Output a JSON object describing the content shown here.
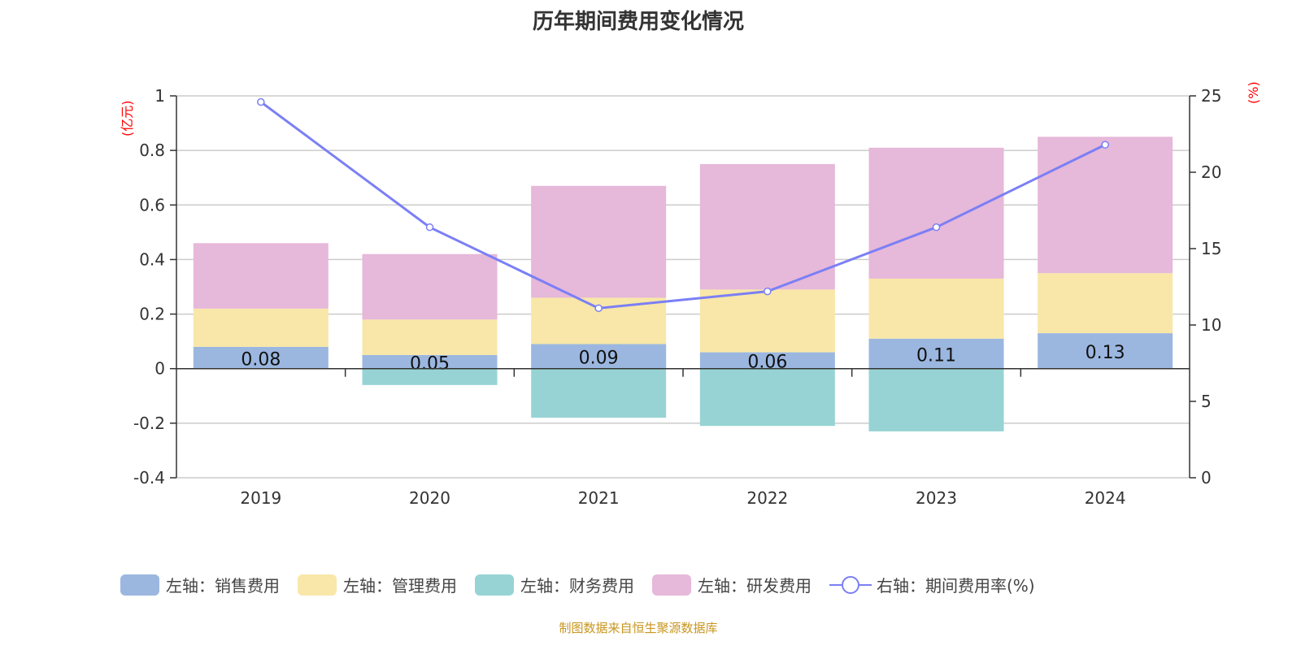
{
  "chart_data": {
    "type": "bar",
    "title": "历年期间费用变化情况",
    "categories": [
      "2019",
      "2020",
      "2021",
      "2022",
      "2023",
      "2024"
    ],
    "left_axis": {
      "label": "(亿元)",
      "range": [
        -0.4,
        1
      ],
      "ticks": [
        "-0.4",
        "-0.2",
        "0",
        "0.2",
        "0.4",
        "0.6",
        "0.8",
        "1"
      ]
    },
    "right_axis": {
      "label": "(%)",
      "range": [
        0,
        25
      ],
      "ticks": [
        "0",
        "5",
        "10",
        "15",
        "20",
        "25"
      ]
    },
    "grid": true,
    "legend_position": "bottom",
    "series": [
      {
        "name": "左轴：销售费用",
        "type": "bar",
        "stack": true,
        "color": "#9bb7e0",
        "values": [
          0.08,
          0.05,
          0.09,
          0.06,
          0.11,
          0.13
        ],
        "labels": [
          "0.08",
          "0.05",
          "0.09",
          "0.06",
          "0.11",
          "0.13"
        ]
      },
      {
        "name": "左轴：管理费用",
        "type": "bar",
        "stack": true,
        "color": "#f8e7a8",
        "values": [
          0.14,
          0.13,
          0.17,
          0.23,
          0.22,
          0.22
        ]
      },
      {
        "name": "左轴：财务费用",
        "type": "bar",
        "stack": true,
        "color": "#97d3d4",
        "values": [
          0,
          -0.06,
          -0.18,
          -0.21,
          -0.23,
          0
        ]
      },
      {
        "name": "左轴：研发费用",
        "type": "bar",
        "stack": true,
        "color": "#e6b8d9",
        "values": [
          0.24,
          0.24,
          0.41,
          0.46,
          0.48,
          0.5
        ]
      },
      {
        "name": "右轴：期间费用率(%)",
        "type": "line",
        "axis": "right",
        "color": "#7b7ff5",
        "values": [
          24.6,
          16.4,
          11.1,
          12.2,
          16.4,
          21.8
        ]
      }
    ]
  },
  "source": "制图数据来自恒生聚源数据库"
}
